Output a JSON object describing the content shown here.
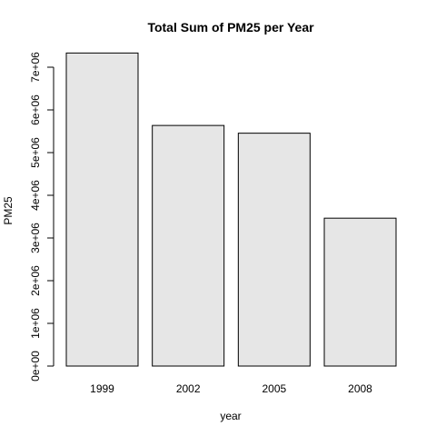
{
  "chart_data": {
    "type": "bar",
    "title": "Total Sum of PM25 per Year",
    "xlabel": "year",
    "ylabel": "PM25",
    "categories": [
      "1999",
      "2002",
      "2005",
      "2008"
    ],
    "values": [
      7332967,
      5635780,
      5454703,
      3464206
    ],
    "ylim": [
      0,
      7500000
    ],
    "yticks": [
      0,
      1000000,
      2000000,
      3000000,
      4000000,
      5000000,
      6000000,
      7000000
    ],
    "ytick_labels": [
      "0e+00",
      "1e+06",
      "2e+06",
      "3e+06",
      "4e+06",
      "5e+06",
      "6e+06",
      "7e+06"
    ],
    "bar_color": "#e6e6e6",
    "grid": false
  }
}
